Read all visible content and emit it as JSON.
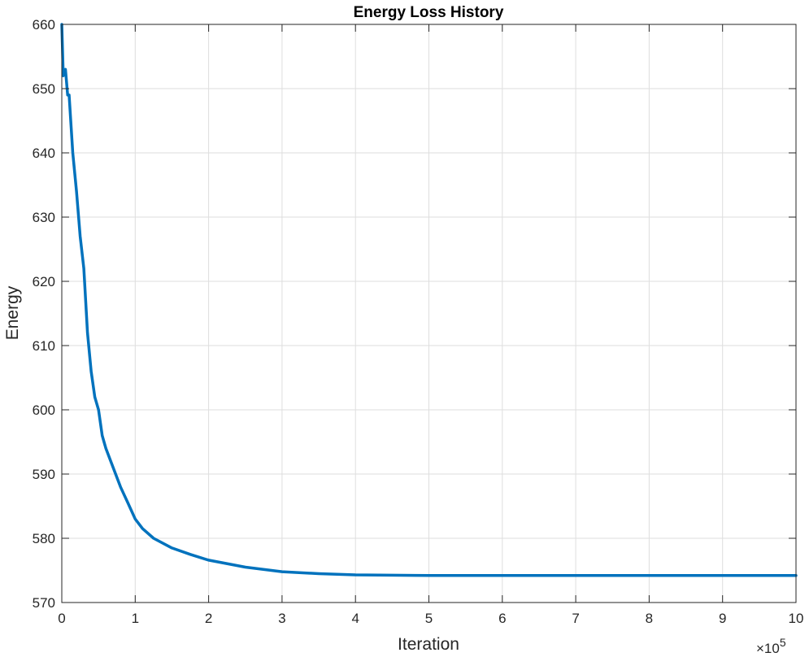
{
  "chart_data": {
    "type": "line",
    "title": "Energy Loss History",
    "xlabel": "Iteration",
    "ylabel": "Energy",
    "x_exponent_label": "×10",
    "x_exponent": "5",
    "xlim": [
      0,
      10
    ],
    "ylim": [
      570,
      660
    ],
    "x_ticks": [
      "0",
      "1",
      "2",
      "3",
      "4",
      "5",
      "6",
      "7",
      "8",
      "9",
      "10"
    ],
    "y_ticks": [
      "570",
      "580",
      "590",
      "600",
      "610",
      "620",
      "630",
      "640",
      "650",
      "660"
    ],
    "grid": true,
    "series_color": "#0072bd",
    "x": [
      0,
      0.02,
      0.05,
      0.08,
      0.1,
      0.15,
      0.2,
      0.25,
      0.3,
      0.35,
      0.4,
      0.45,
      0.5,
      0.55,
      0.6,
      0.7,
      0.8,
      0.9,
      1.0,
      1.1,
      1.25,
      1.5,
      1.75,
      2.0,
      2.5,
      3.0,
      3.5,
      4.0,
      5.0,
      6.0,
      7.0,
      8.0,
      9.0,
      10.0
    ],
    "y": [
      660,
      652,
      653,
      649,
      649,
      640,
      634,
      627,
      622,
      612,
      606,
      602,
      600,
      596,
      594,
      591,
      588,
      585.5,
      583,
      581.5,
      580,
      578.5,
      577.5,
      576.6,
      575.5,
      574.8,
      574.5,
      574.3,
      574.2,
      574.2,
      574.2,
      574.2,
      574.2,
      574.2
    ]
  }
}
